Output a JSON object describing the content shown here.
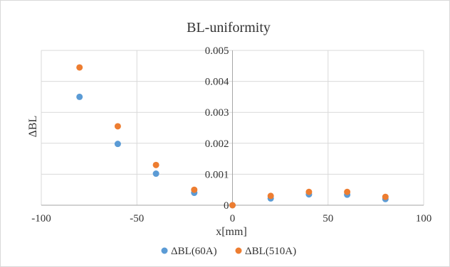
{
  "chart_data": {
    "type": "scatter",
    "title": "BL-uniformity",
    "xlabel": "x[mm]",
    "ylabel": "ΔBL",
    "xlim": [
      -100,
      100
    ],
    "ylim": [
      0,
      0.005
    ],
    "x_ticks": [
      -100,
      -50,
      0,
      50,
      100
    ],
    "x_tick_labels": [
      "-100",
      "-50",
      "0",
      "50",
      "100"
    ],
    "y_ticks": [
      0,
      0.001,
      0.002,
      0.003,
      0.004,
      0.005
    ],
    "y_tick_labels": [
      "0",
      "0.001",
      "0.002",
      "0.003",
      "0.004",
      "0.005"
    ],
    "grid": true,
    "legend_position": "bottom",
    "series": [
      {
        "name": "ΔBL(60A)",
        "color": "#5b9bd5",
        "points": [
          {
            "x": -80,
            "y": 0.0035
          },
          {
            "x": -60,
            "y": 0.00198
          },
          {
            "x": -40,
            "y": 0.00102
          },
          {
            "x": -20,
            "y": 0.0004
          },
          {
            "x": 0,
            "y": 0.0
          },
          {
            "x": 20,
            "y": 0.00022
          },
          {
            "x": 40,
            "y": 0.00035
          },
          {
            "x": 60,
            "y": 0.00034
          },
          {
            "x": 80,
            "y": 0.0002
          }
        ]
      },
      {
        "name": "ΔBL(510A)",
        "color": "#ed7d31",
        "points": [
          {
            "x": -80,
            "y": 0.00445
          },
          {
            "x": -60,
            "y": 0.00255
          },
          {
            "x": -40,
            "y": 0.0013
          },
          {
            "x": -20,
            "y": 0.0005
          },
          {
            "x": 0,
            "y": 0.0
          },
          {
            "x": 20,
            "y": 0.0003
          },
          {
            "x": 40,
            "y": 0.00043
          },
          {
            "x": 60,
            "y": 0.00043
          },
          {
            "x": 80,
            "y": 0.00027
          }
        ]
      }
    ]
  }
}
